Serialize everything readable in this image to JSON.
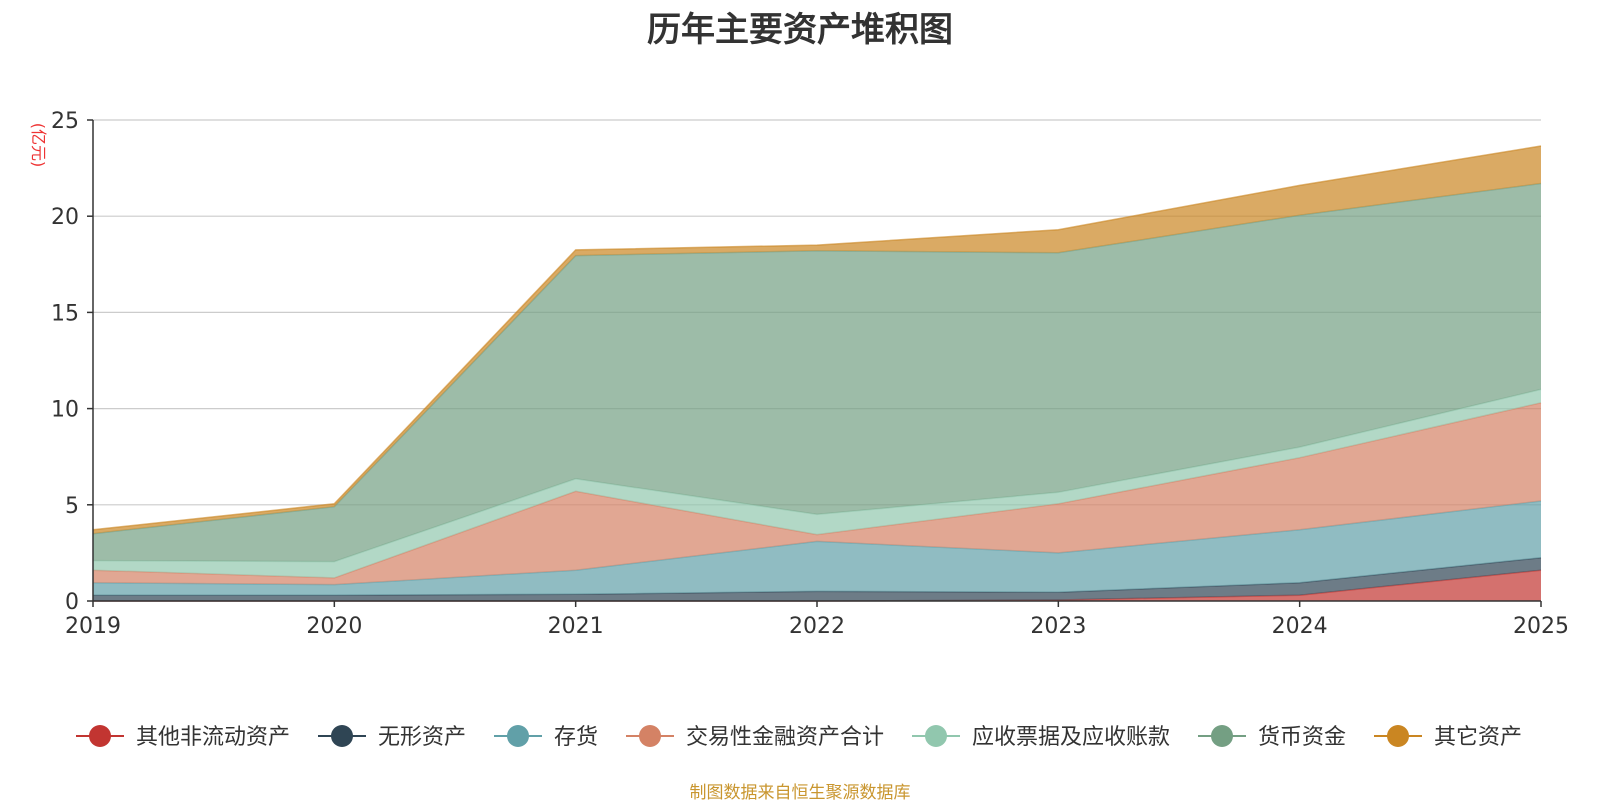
{
  "chart_data": {
    "type": "area",
    "stacked": true,
    "title": "历年主要资产堆积图",
    "ylabel": "(亿元)",
    "xlabel": "",
    "categories": [
      "2019",
      "2020",
      "2021",
      "2022",
      "2023",
      "2024",
      "2025"
    ],
    "ylim": [
      0,
      25
    ],
    "yticks": [
      0,
      5,
      10,
      15,
      20,
      25
    ],
    "grid": true,
    "legend_position": "bottom",
    "series": [
      {
        "name": "其他非流动资产",
        "color": "#c23531",
        "values": [
          0.0,
          0.0,
          0.0,
          0.0,
          0.05,
          0.3,
          1.6
        ]
      },
      {
        "name": "无形资产",
        "color": "#2f4554",
        "values": [
          0.3,
          0.3,
          0.35,
          0.5,
          0.4,
          0.65,
          0.65
        ]
      },
      {
        "name": "存货",
        "color": "#61a0a8",
        "values": [
          0.65,
          0.55,
          1.25,
          2.6,
          2.05,
          2.75,
          2.95
        ]
      },
      {
        "name": "交易性金融资产合计",
        "color": "#d48265",
        "values": [
          0.65,
          0.35,
          4.1,
          0.35,
          2.55,
          3.75,
          5.1
        ]
      },
      {
        "name": "应收票据及应收账款",
        "color": "#91c7ae",
        "values": [
          0.5,
          0.85,
          0.65,
          1.05,
          0.6,
          0.55,
          0.7
        ]
      },
      {
        "name": "货币资金",
        "color": "#749f83",
        "values": [
          1.4,
          2.85,
          11.6,
          13.7,
          12.45,
          12.05,
          10.7
        ]
      },
      {
        "name": "其它资产",
        "color": "#ca8622",
        "values": [
          0.2,
          0.15,
          0.3,
          0.3,
          1.2,
          1.55,
          1.95
        ]
      }
    ]
  },
  "footer": {
    "source": "制图数据来自恒生聚源数据库"
  }
}
